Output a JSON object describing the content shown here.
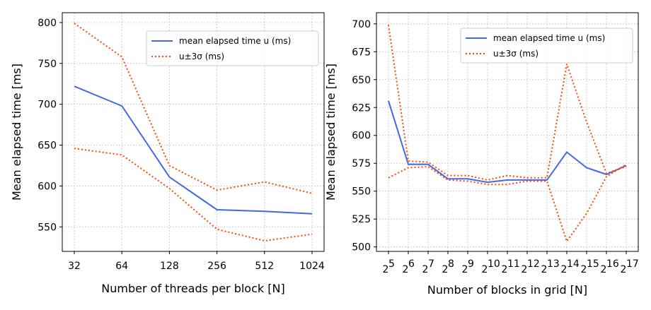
{
  "chart_data": [
    {
      "type": "line",
      "title": "",
      "xlabel": "Number of threads per block [N]",
      "ylabel": "Mean elapsed time [ms]",
      "x_scale": "log2",
      "ylim": [
        520,
        812
      ],
      "yticks": [
        550,
        600,
        650,
        700,
        750,
        800
      ],
      "x": [
        32,
        64,
        128,
        256,
        512,
        1024
      ],
      "x_tick_labels": [
        "32",
        "64",
        "128",
        "256",
        "512",
        "1024"
      ],
      "grid": true,
      "legend_position": "upper-right",
      "series": [
        {
          "name": "mean elapsed time u (ms)",
          "color": "#4169e1",
          "style": "solid",
          "values": [
            722,
            698,
            611,
            571,
            569,
            566
          ]
        },
        {
          "name": "u±3σ (ms)",
          "color": "#ff4500",
          "style": "dotted",
          "values": [
            799,
            758,
            625,
            595,
            605,
            591
          ]
        },
        {
          "name": "",
          "color": "#ff4500",
          "style": "dotted",
          "values": [
            646,
            638,
            597,
            547,
            533,
            541
          ]
        }
      ]
    },
    {
      "type": "line",
      "title": "",
      "xlabel": "Number of blocks in grid [N]",
      "ylabel": "Mean elapsed time [ms]",
      "x_scale": "log2",
      "ylim": [
        496,
        710
      ],
      "yticks": [
        500,
        525,
        550,
        575,
        600,
        625,
        650,
        675,
        700
      ],
      "x_exponents": [
        5,
        6,
        7,
        8,
        9,
        10,
        11,
        12,
        13,
        14,
        15,
        16,
        17
      ],
      "x_tick_base": "2",
      "grid": true,
      "legend_position": "upper-right",
      "series": [
        {
          "name": "mean elapsed time u (ms)",
          "color": "#4169e1",
          "style": "solid",
          "values": [
            631,
            574,
            574,
            561,
            561,
            558,
            560,
            560,
            560,
            585,
            571,
            565,
            573
          ]
        },
        {
          "name": "u±3σ (ms)",
          "color": "#ff4500",
          "style": "dotted",
          "values": [
            699,
            577,
            576,
            564,
            564,
            560,
            564,
            562,
            562,
            664,
            612,
            566,
            572
          ]
        },
        {
          "name": "",
          "color": "#ff4500",
          "style": "dotted",
          "values": [
            562,
            571,
            572,
            560,
            559,
            556,
            556,
            559,
            559,
            505,
            530,
            563,
            574
          ]
        }
      ]
    }
  ]
}
